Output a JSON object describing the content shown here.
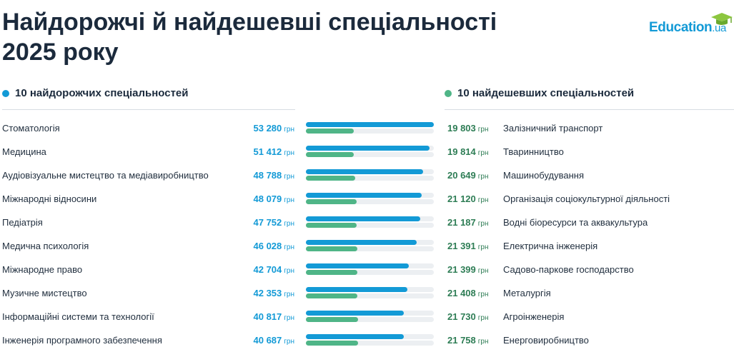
{
  "title": "Найдорожчі й найдешевші спеціальності 2025 року",
  "logo": {
    "text": "Education",
    "suffix": ".ua"
  },
  "left_header": "10 найдорожчих спеціальностей",
  "right_header": "10 найдешевших спеціальностей",
  "unit": "грн",
  "colors": {
    "expensive": "#139ad6",
    "cheap": "#4fb587",
    "cheap_text": "#2e7d55"
  },
  "chart_data": {
    "type": "bar",
    "ylim": [
      0,
      53280
    ],
    "series": [
      {
        "name": "10 найдорожчих спеціальностей",
        "categories": [
          "Стоматологія",
          "Медицина",
          "Аудіовізуальне мистецтво та медіавиробництво",
          "Міжнародні відносини",
          "Педіатрія",
          "Медична психологія",
          "Міжнародне право",
          "Музичне мистецтво",
          "Інформаційні системи та технології",
          "Інженерія програмного забезпечення"
        ],
        "values": [
          53280,
          51412,
          48788,
          48079,
          47752,
          46028,
          42704,
          42353,
          40817,
          40687
        ],
        "labels": [
          "53 280",
          "51 412",
          "48 788",
          "48 079",
          "47 752",
          "46 028",
          "42 704",
          "42 353",
          "40 817",
          "40 687"
        ]
      },
      {
        "name": "10 найдешевших спеціальностей",
        "categories": [
          "Залізничний транспорт",
          "Тваринництво",
          "Машинобудування",
          "Організація соціокультурної діяльності",
          "Водні біоресурси та аквакультура",
          "Електрична інженерія",
          "Садово-паркове господарство",
          "Металургія",
          "Агроінженерія",
          "Енерговиробництво"
        ],
        "values": [
          19803,
          19814,
          20649,
          21120,
          21187,
          21391,
          21399,
          21408,
          21730,
          21758
        ],
        "labels": [
          "19 803",
          "19 814",
          "20 649",
          "21 120",
          "21 187",
          "21 391",
          "21 399",
          "21 408",
          "21 730",
          "21 758"
        ]
      }
    ]
  }
}
